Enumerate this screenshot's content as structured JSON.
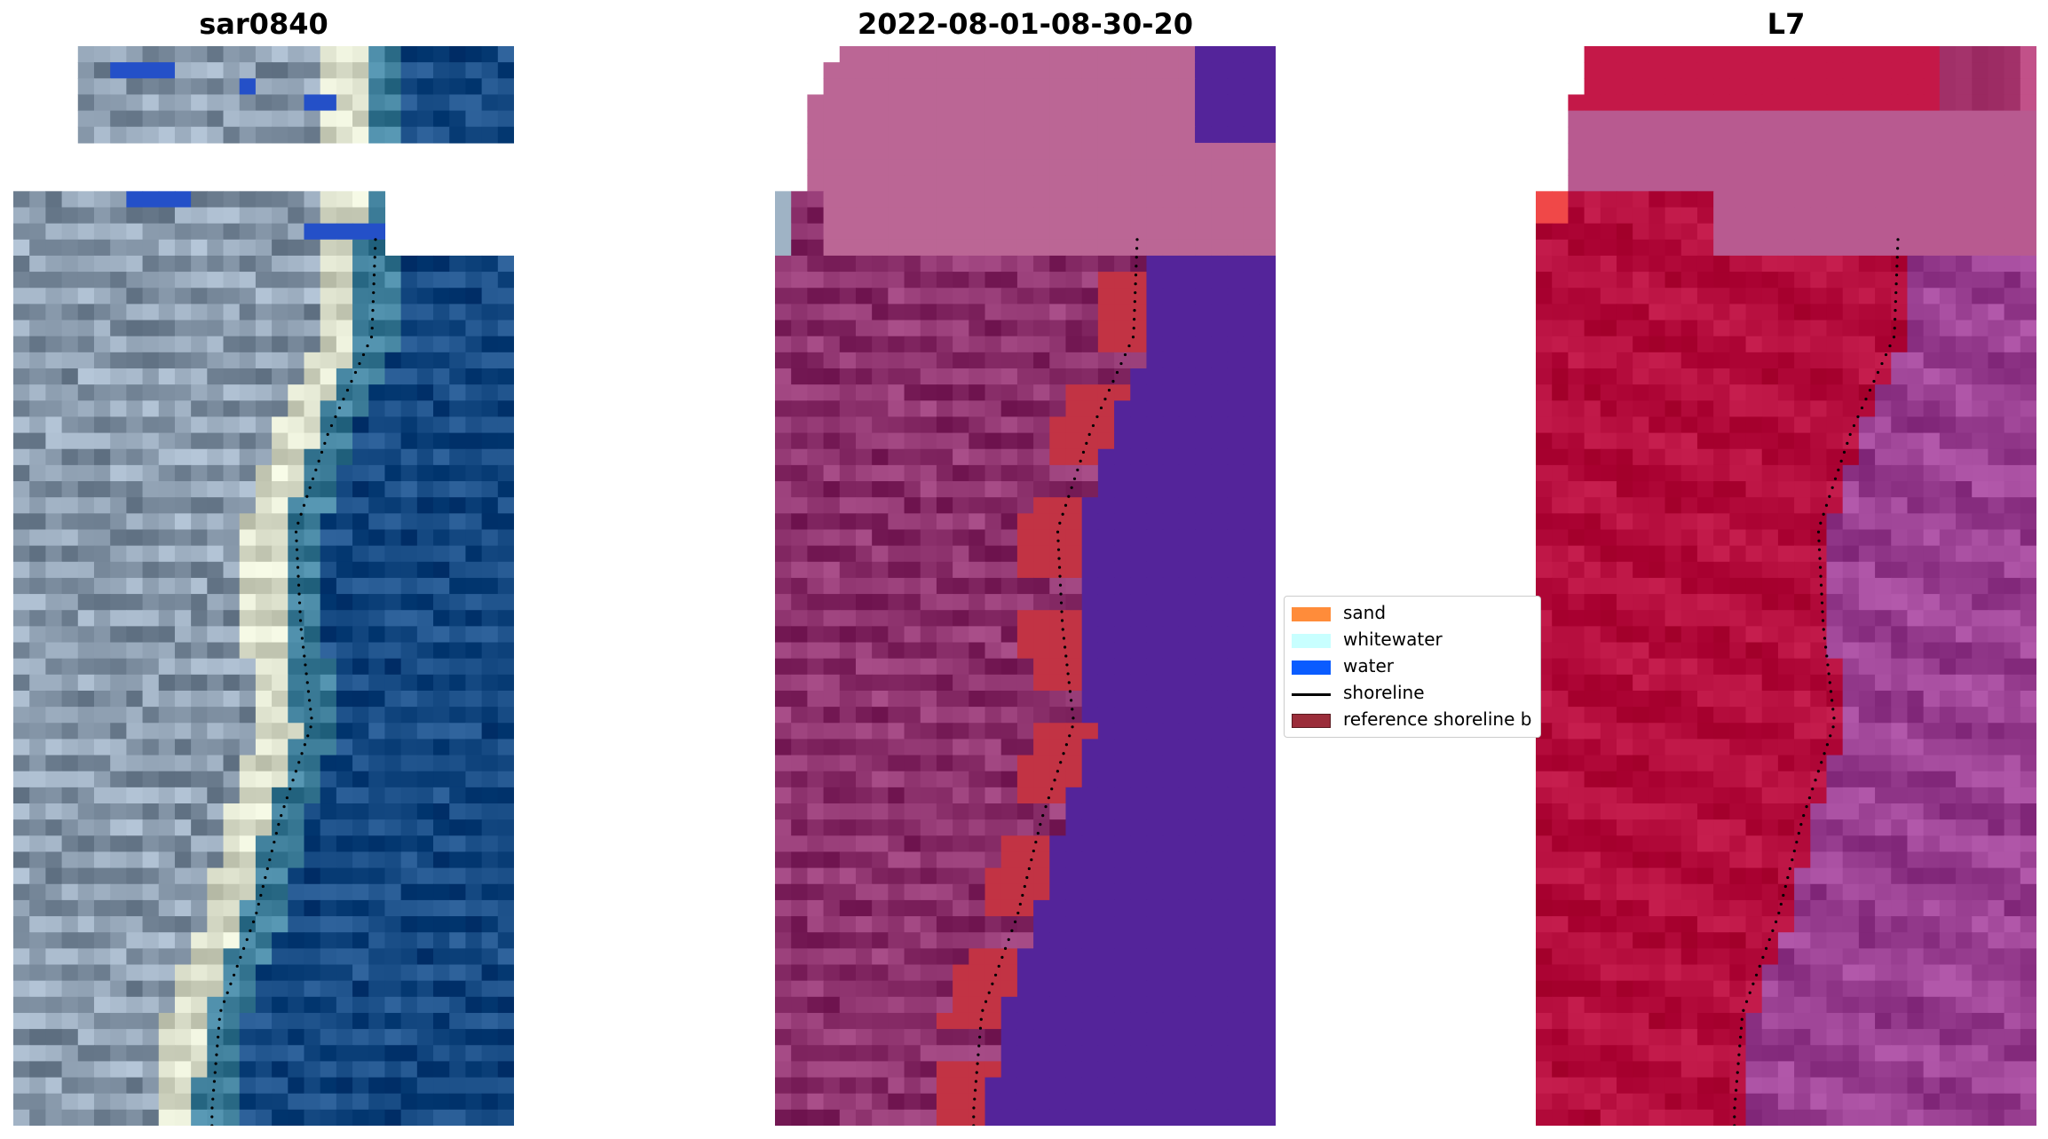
{
  "panels": [
    {
      "title": "sar0840",
      "style": "rgb"
    },
    {
      "title": "2022-08-01-08-30-20",
      "style": "classified"
    },
    {
      "title": "L7",
      "style": "ndwi"
    }
  ],
  "legend": {
    "items": [
      {
        "label": "sand",
        "kind": "patch",
        "color": "#ff8c3a"
      },
      {
        "label": "whitewater",
        "kind": "patch",
        "color": "#c8ffff"
      },
      {
        "label": "water",
        "kind": "patch",
        "color": "#0a5cff"
      },
      {
        "label": "shoreline",
        "kind": "line",
        "color": "#000000"
      },
      {
        "label": "reference shoreline b",
        "kind": "patch",
        "color": "#9b2d3a"
      }
    ]
  },
  "colors": {
    "water_rgb": "#22568f",
    "land_rgb": "#9fb0c2",
    "beach_rgb": "#e8ecd8",
    "nodata_rgb": "#2450c8",
    "water_class": "#54249a",
    "land_class": "#9a3f7a",
    "buffer_class": "#c23344",
    "overlay_class": "#bb6695",
    "land_ndwi": "#bd1545",
    "water_ndwi": "#a64c9e",
    "shoreline": "#000000"
  }
}
